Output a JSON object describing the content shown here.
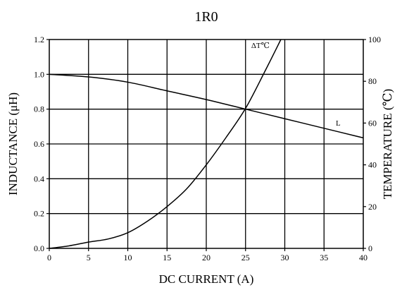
{
  "chart_data": {
    "type": "line",
    "title": "1R0",
    "xlabel": "DC CURRENT (A)",
    "ylabel_left": "INDUCTANCE (μH)",
    "ylabel_right": "TEMPERATURE (℃)",
    "xlim": [
      0,
      40
    ],
    "ylim_left": [
      0,
      1.2
    ],
    "ylim_right": [
      0,
      100
    ],
    "x_ticks": [
      "0",
      "5",
      "10",
      "15",
      "20",
      "25",
      "30",
      "35",
      "40"
    ],
    "y_left_ticks": [
      "0.0",
      "0.2",
      "0.4",
      "0.6",
      "0.8",
      "1.0",
      "1.2"
    ],
    "y_right_ticks": [
      "0",
      "20",
      "40",
      "60",
      "80",
      "100"
    ],
    "grid": true,
    "series": [
      {
        "name": "L",
        "axis": "left",
        "x": [
          0,
          5,
          10,
          15,
          20,
          25,
          30,
          35,
          40
        ],
        "y": [
          1.0,
          0.985,
          0.955,
          0.905,
          0.855,
          0.8,
          0.745,
          0.69,
          0.635
        ]
      },
      {
        "name": "ΔT℃",
        "axis": "right",
        "x": [
          0,
          2.5,
          5,
          7.5,
          10,
          12.5,
          15,
          17.5,
          20,
          22.5,
          25,
          27.5,
          29.5
        ],
        "y": [
          0,
          1.2,
          3,
          4.5,
          7.5,
          13,
          20,
          28.5,
          40,
          53,
          67,
          85,
          100
        ]
      }
    ]
  }
}
